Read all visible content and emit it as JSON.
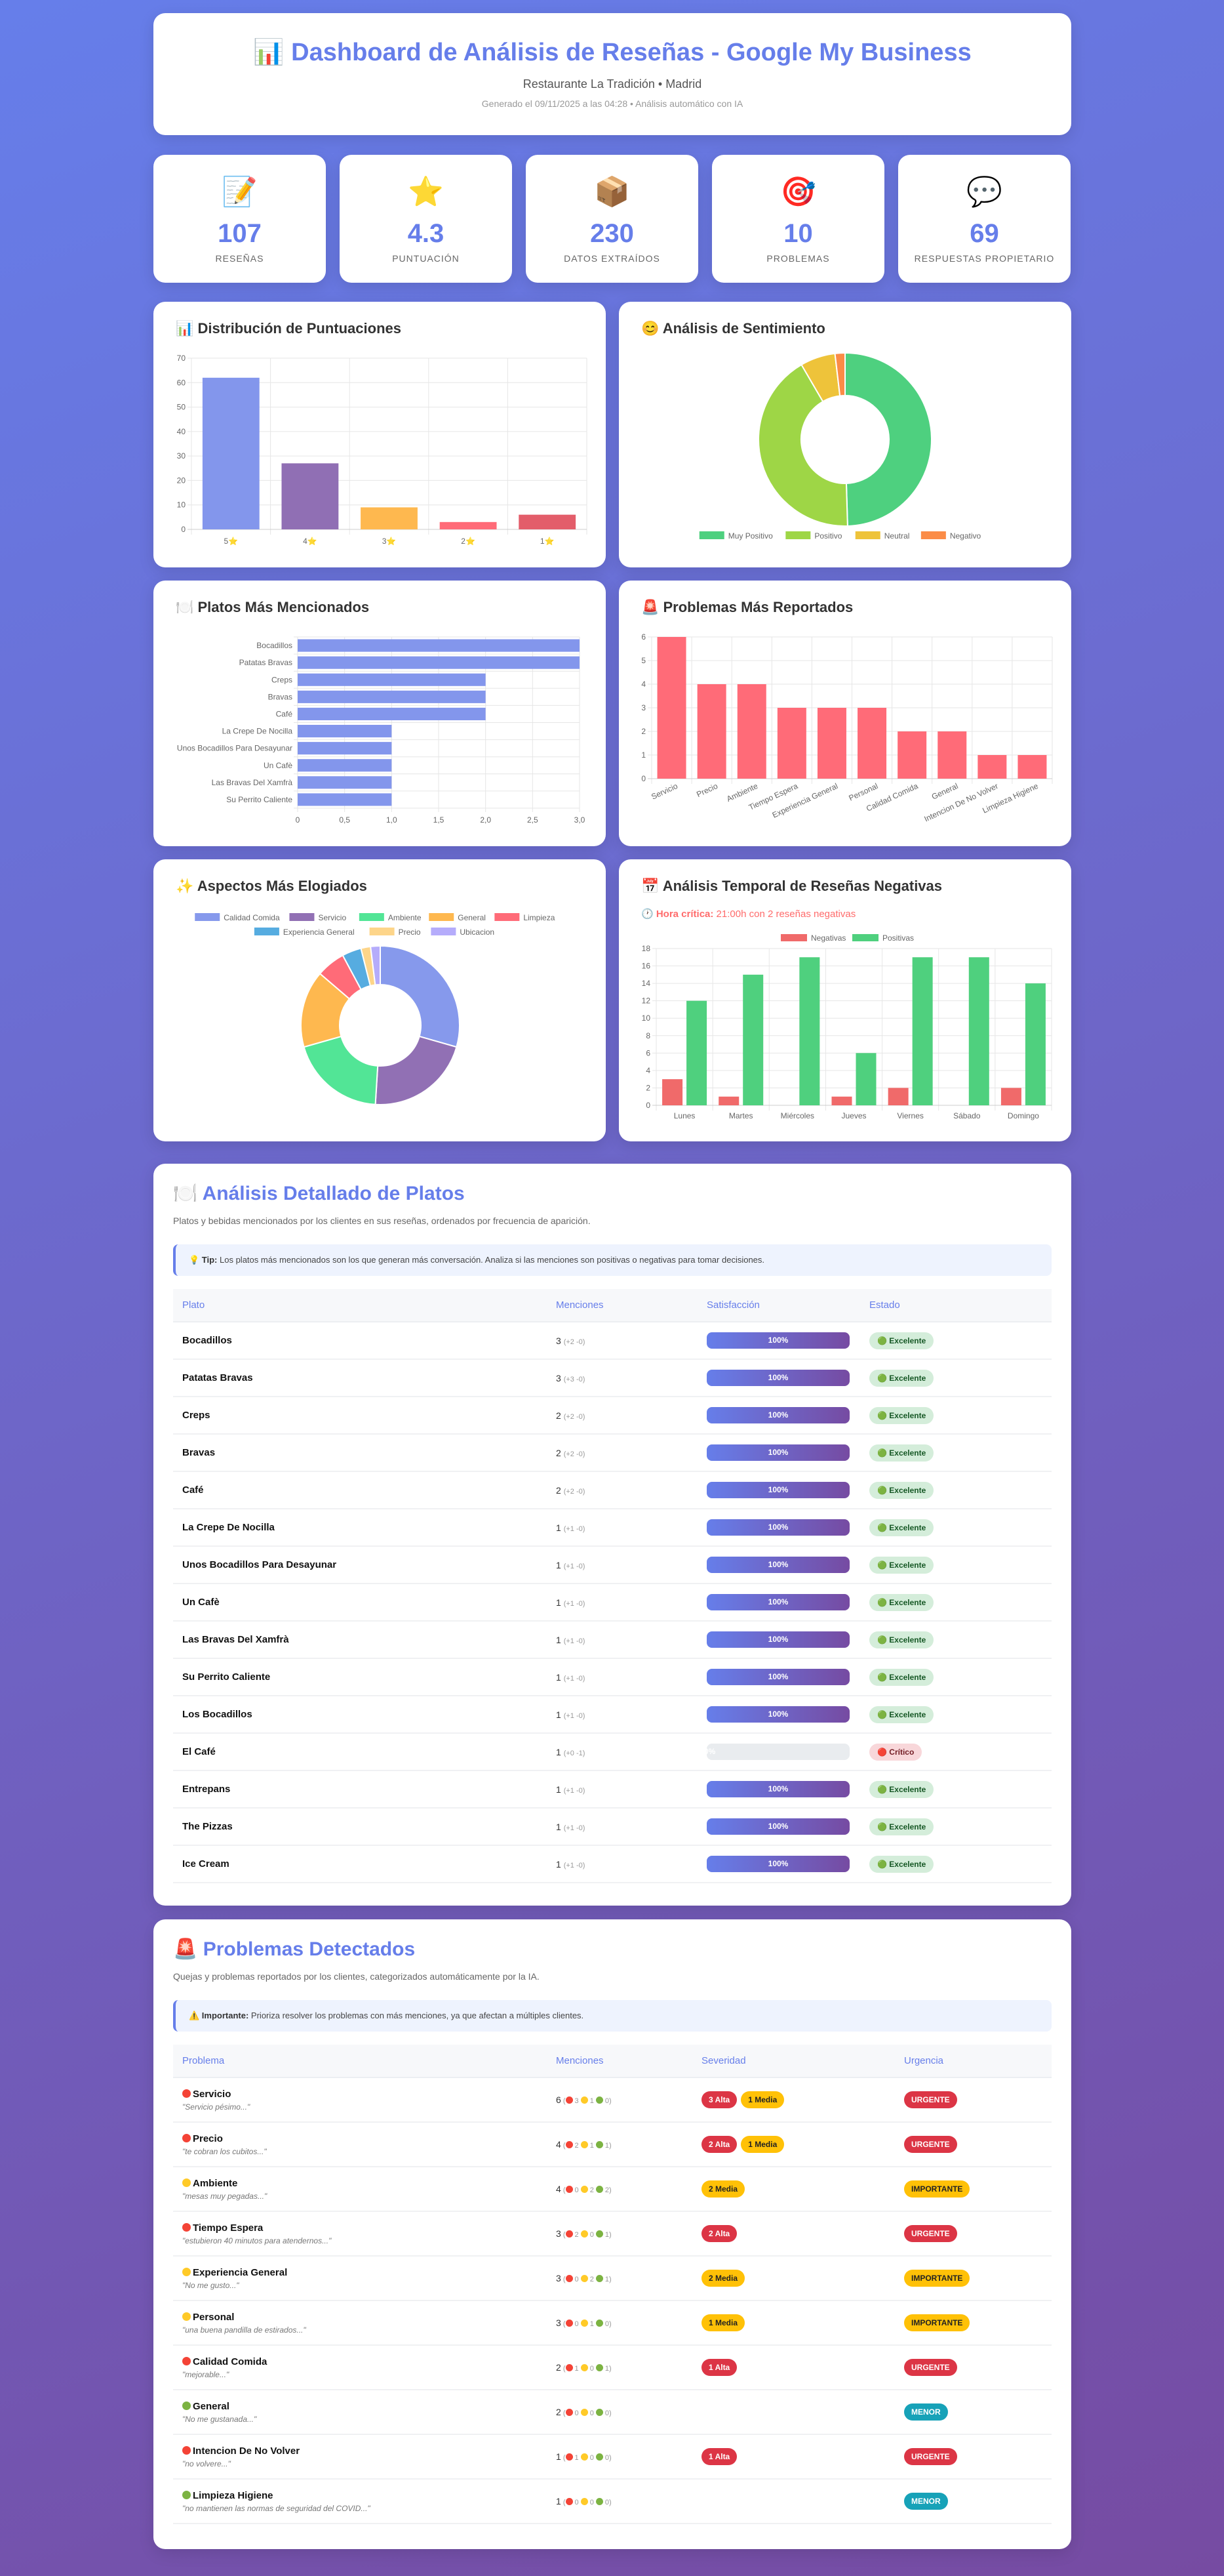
{
  "header": {
    "icon": "bar-chart-icon",
    "title": "📊 Dashboard de Análisis de Reseñas - Google My Business",
    "subtitle": "Restaurante La Tradición • Madrid",
    "generated": "Generado el 09/11/2025 a las 04:28 • Análisis automático con IA"
  },
  "stats": [
    {
      "icon": "📝",
      "value": "107",
      "label": "Reseñas"
    },
    {
      "icon": "⭐",
      "value": "4.3",
      "label": "Puntuación"
    },
    {
      "icon": "📦",
      "value": "230",
      "label": "Datos extraídos"
    },
    {
      "icon": "🎯",
      "value": "10",
      "label": "Problemas"
    },
    {
      "icon": "💬",
      "value": "69",
      "label": "Respuestas propietario"
    }
  ],
  "colors": {
    "accent": "#667eea",
    "accent2": "#764ba2",
    "red": "#dc3545",
    "yellow": "#ffc107",
    "teal": "#17a2b8",
    "green": "#4fd07e"
  },
  "chart_data": [
    {
      "type": "bar",
      "title": "📊 Distribución de Puntuaciones",
      "categories": [
        "5⭐",
        "4⭐",
        "3⭐",
        "2⭐",
        "1⭐"
      ],
      "values": [
        62,
        27,
        9,
        3,
        6
      ],
      "ylim": [
        0,
        70
      ],
      "yticks": [
        "0",
        "10",
        "20",
        "30",
        "40",
        "50",
        "60",
        "70"
      ],
      "colors": [
        "#8396ec",
        "#906fb4",
        "#feb84f",
        "#ff6b78",
        "#e35d6a"
      ],
      "grid": true
    },
    {
      "type": "pie",
      "donut": true,
      "title": "😊 Análisis de Sentimiento",
      "categories": [
        "Muy Positivo",
        "Positivo",
        "Neutral",
        "Negativo"
      ],
      "values": [
        53,
        45,
        7,
        2
      ],
      "colors": [
        "#4ed07f",
        "#9ed646",
        "#eec33a",
        "#fb8c47"
      ],
      "legend": "bottom"
    },
    {
      "type": "bar",
      "orientation": "horizontal",
      "title": "🍽️ Platos Más Mencionados",
      "categories": [
        "Bocadillos",
        "Patatas Bravas",
        "Creps",
        "Bravas",
        "Café",
        "La Crepe De Nocilla",
        "Unos Bocadillos Para Desayunar",
        "Un Cafè",
        "Las Bravas Del Xamfrà",
        "Su Perrito Caliente"
      ],
      "values": [
        3,
        3,
        2,
        2,
        2,
        1,
        1,
        1,
        1,
        1
      ],
      "xlim": [
        0,
        3
      ],
      "xticks": [
        "0",
        "0,5",
        "1,0",
        "1,5",
        "2,0",
        "2,5",
        "3,0"
      ],
      "colors": [
        "#8396ec"
      ],
      "grid": true
    },
    {
      "type": "bar",
      "title": "🚨 Problemas Más Reportados",
      "categories": [
        "Servicio",
        "Precio",
        "Ambiente",
        "Tiempo Espera",
        "Experiencia General",
        "Personal",
        "Calidad Comida",
        "General",
        "Intencion De No Volver",
        "Limpieza Higiene"
      ],
      "values": [
        6,
        4,
        4,
        3,
        3,
        3,
        2,
        2,
        1,
        1
      ],
      "ylim": [
        0,
        6
      ],
      "yticks": [
        "0",
        "1",
        "2",
        "3",
        "4",
        "5",
        "6"
      ],
      "colors": [
        "#ff6b78"
      ],
      "grid": true
    },
    {
      "type": "pie",
      "donut": true,
      "title": "✨ Aspectos Más Elogiados",
      "categories": [
        "Calidad Comida",
        "Servicio",
        "Ambiente",
        "General",
        "Limpieza",
        "Experiencia General",
        "Precio",
        "Ubicacion"
      ],
      "values": [
        15,
        11,
        10,
        8,
        3,
        2,
        1,
        1
      ],
      "colors": [
        "#8699ec",
        "#9170b4",
        "#52e596",
        "#feb84f",
        "#ff6b78",
        "#56ace0",
        "#fdd58a",
        "#b5acfb"
      ],
      "legend": "top"
    },
    {
      "type": "bar",
      "grouped": true,
      "title": "📅 Análisis Temporal de Reseñas Negativas",
      "critical_label": "🕐 Hora crítica:",
      "critical_text": " 21:00h con 2 reseñas negativas",
      "categories": [
        "Lunes",
        "Martes",
        "Miércoles",
        "Jueves",
        "Viernes",
        "Sábado",
        "Domingo"
      ],
      "series": [
        {
          "name": "Negativas",
          "values": [
            3,
            1,
            0,
            1,
            2,
            0,
            2
          ],
          "color": "#f06a6a"
        },
        {
          "name": "Positivas",
          "values": [
            12,
            15,
            17,
            6,
            17,
            17,
            14
          ],
          "color": "#4fd07e"
        }
      ],
      "ylim": [
        0,
        18
      ],
      "yticks": [
        "0",
        "2",
        "4",
        "6",
        "8",
        "10",
        "12",
        "14",
        "16",
        "18"
      ],
      "legend": "top",
      "grid": true
    }
  ],
  "dishes": {
    "title": "🍽️ Análisis Detallado de Platos",
    "description": "Platos y bebidas mencionados por los clientes en sus reseñas, ordenados por frecuencia de aparición.",
    "tip_label": "💡 Tip:",
    "tip_text": " Los platos más mencionados son los que generan más conversación. Analiza si las menciones son positivas o negativas para tomar decisiones.",
    "columns": [
      "Plato",
      "Menciones",
      "Satisfacción",
      "Estado"
    ],
    "rows": [
      {
        "name": "Bocadillos",
        "mentions": "3",
        "detail": "(+2 -0)",
        "satisfaction": 100,
        "sat_label": "100%",
        "status": "🟢 Excelente",
        "ok": true
      },
      {
        "name": "Patatas Bravas",
        "mentions": "3",
        "detail": "(+3 -0)",
        "satisfaction": 100,
        "sat_label": "100%",
        "status": "🟢 Excelente",
        "ok": true
      },
      {
        "name": "Creps",
        "mentions": "2",
        "detail": "(+2 -0)",
        "satisfaction": 100,
        "sat_label": "100%",
        "status": "🟢 Excelente",
        "ok": true
      },
      {
        "name": "Bravas",
        "mentions": "2",
        "detail": "(+2 -0)",
        "satisfaction": 100,
        "sat_label": "100%",
        "status": "🟢 Excelente",
        "ok": true
      },
      {
        "name": "Café",
        "mentions": "2",
        "detail": "(+2 -0)",
        "satisfaction": 100,
        "sat_label": "100%",
        "status": "🟢 Excelente",
        "ok": true
      },
      {
        "name": "La Crepe De Nocilla",
        "mentions": "1",
        "detail": "(+1 -0)",
        "satisfaction": 100,
        "sat_label": "100%",
        "status": "🟢 Excelente",
        "ok": true
      },
      {
        "name": "Unos Bocadillos Para Desayunar",
        "mentions": "1",
        "detail": "(+1 -0)",
        "satisfaction": 100,
        "sat_label": "100%",
        "status": "🟢 Excelente",
        "ok": true
      },
      {
        "name": "Un Cafè",
        "mentions": "1",
        "detail": "(+1 -0)",
        "satisfaction": 100,
        "sat_label": "100%",
        "status": "🟢 Excelente",
        "ok": true
      },
      {
        "name": "Las Bravas Del Xamfrà",
        "mentions": "1",
        "detail": "(+1 -0)",
        "satisfaction": 100,
        "sat_label": "100%",
        "status": "🟢 Excelente",
        "ok": true
      },
      {
        "name": "Su Perrito Caliente",
        "mentions": "1",
        "detail": "(+1 -0)",
        "satisfaction": 100,
        "sat_label": "100%",
        "status": "🟢 Excelente",
        "ok": true
      },
      {
        "name": "Los Bocadillos",
        "mentions": "1",
        "detail": "(+1 -0)",
        "satisfaction": 100,
        "sat_label": "100%",
        "status": "🟢 Excelente",
        "ok": true
      },
      {
        "name": "El Café",
        "mentions": "1",
        "detail": "(+0 -1)",
        "satisfaction": 0,
        "sat_label": "0%",
        "status": "🔴 Crítico",
        "ok": false
      },
      {
        "name": "Entrepans",
        "mentions": "1",
        "detail": "(+1 -0)",
        "satisfaction": 100,
        "sat_label": "100%",
        "status": "🟢 Excelente",
        "ok": true
      },
      {
        "name": "The Pizzas",
        "mentions": "1",
        "detail": "(+1 -0)",
        "satisfaction": 100,
        "sat_label": "100%",
        "status": "🟢 Excelente",
        "ok": true
      },
      {
        "name": "Ice Cream",
        "mentions": "1",
        "detail": "(+1 -0)",
        "satisfaction": 100,
        "sat_label": "100%",
        "status": "🟢 Excelente",
        "ok": true
      }
    ]
  },
  "problems": {
    "title": "🚨 Problemas Detectados",
    "description": "Quejas y problemas reportados por los clientes, categorizados automáticamente por la IA.",
    "tip_label": "⚠️ Importante:",
    "tip_text": " Prioriza resolver los problemas con más menciones, ya que afectan a múltiples clientes.",
    "columns": [
      "Problema",
      "Menciones",
      "Severidad",
      "Urgencia"
    ],
    "rows": [
      {
        "level": "red",
        "name": "Servicio",
        "quote": "\"Servicio pésimo...\"",
        "mentions": "6",
        "red": "3",
        "yellow": "1",
        "green": "0",
        "severity": [
          {
            "label": "3 Alta",
            "kind": "alta"
          },
          {
            "label": "1 Media",
            "kind": "media"
          }
        ],
        "urgency": "URGENTE"
      },
      {
        "level": "red",
        "name": "Precio",
        "quote": "\"te cobran los cubitos...\"",
        "mentions": "4",
        "red": "2",
        "yellow": "1",
        "green": "1",
        "severity": [
          {
            "label": "2 Alta",
            "kind": "alta"
          },
          {
            "label": "1 Media",
            "kind": "media"
          }
        ],
        "urgency": "URGENTE"
      },
      {
        "level": "yellow",
        "name": "Ambiente",
        "quote": "\"mesas muy pegadas...\"",
        "mentions": "4",
        "red": "0",
        "yellow": "2",
        "green": "2",
        "severity": [
          {
            "label": "2 Media",
            "kind": "media"
          }
        ],
        "urgency": "IMPORTANTE"
      },
      {
        "level": "red",
        "name": "Tiempo Espera",
        "quote": "\"estubieron 40 minutos para atendernos...\"",
        "mentions": "3",
        "red": "2",
        "yellow": "0",
        "green": "1",
        "severity": [
          {
            "label": "2 Alta",
            "kind": "alta"
          }
        ],
        "urgency": "URGENTE"
      },
      {
        "level": "yellow",
        "name": "Experiencia General",
        "quote": "\"No me gusto...\"",
        "mentions": "3",
        "red": "0",
        "yellow": "2",
        "green": "1",
        "severity": [
          {
            "label": "2 Media",
            "kind": "media"
          }
        ],
        "urgency": "IMPORTANTE"
      },
      {
        "level": "yellow",
        "name": "Personal",
        "quote": "\"una buena pandilla de estirados...\"",
        "mentions": "3",
        "red": "0",
        "yellow": "1",
        "green": "0",
        "severity": [
          {
            "label": "1 Media",
            "kind": "media"
          }
        ],
        "urgency": "IMPORTANTE"
      },
      {
        "level": "red",
        "name": "Calidad Comida",
        "quote": "\"mejorable...\"",
        "mentions": "2",
        "red": "1",
        "yellow": "0",
        "green": "1",
        "severity": [
          {
            "label": "1 Alta",
            "kind": "alta"
          }
        ],
        "urgency": "URGENTE"
      },
      {
        "level": "green",
        "name": "General",
        "quote": "\"No me gustanada...\"",
        "mentions": "2",
        "red": "0",
        "yellow": "0",
        "green": "0",
        "severity": [],
        "urgency": "MENOR"
      },
      {
        "level": "red",
        "name": "Intencion De No Volver",
        "quote": "\"no volvere...\"",
        "mentions": "1",
        "red": "1",
        "yellow": "0",
        "green": "0",
        "severity": [
          {
            "label": "1 Alta",
            "kind": "alta"
          }
        ],
        "urgency": "URGENTE"
      },
      {
        "level": "green",
        "name": "Limpieza Higiene",
        "quote": "\"no mantienen las normas de seguridad del COVID...\"",
        "mentions": "1",
        "red": "0",
        "yellow": "0",
        "green": "0",
        "severity": [],
        "urgency": "MENOR"
      }
    ]
  }
}
